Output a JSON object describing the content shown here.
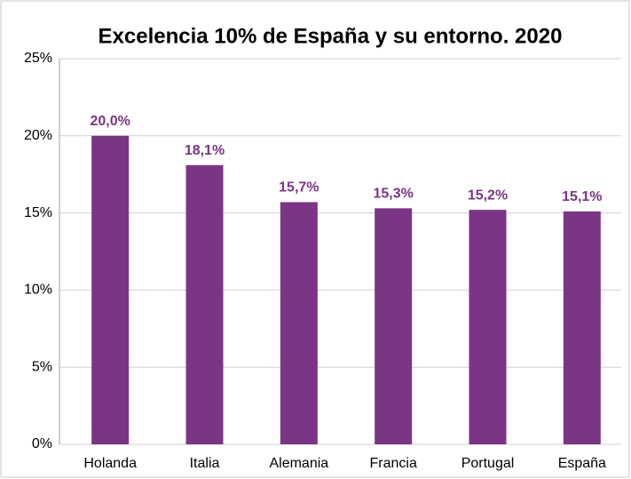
{
  "chart_data": {
    "type": "bar",
    "title": "Excelencia 10% de España y su entorno. 2020",
    "categories": [
      "Holanda",
      "Italia",
      "Alemania",
      "Francia",
      "Portugal",
      "España"
    ],
    "values": [
      20.0,
      18.1,
      15.7,
      15.3,
      15.2,
      15.1
    ],
    "value_labels": [
      "20,0%",
      "18,1%",
      "15,7%",
      "15,3%",
      "15,2%",
      "15,1%"
    ],
    "color": "#7b3585",
    "ylim": [
      0,
      25
    ],
    "yticks": [
      {
        "value": 0,
        "label": "0%"
      },
      {
        "value": 5,
        "label": "5%"
      },
      {
        "value": 10,
        "label": "10%"
      },
      {
        "value": 15,
        "label": "15%"
      },
      {
        "value": 20,
        "label": "20%"
      },
      {
        "value": 25,
        "label": "25%"
      }
    ],
    "grid": true
  }
}
